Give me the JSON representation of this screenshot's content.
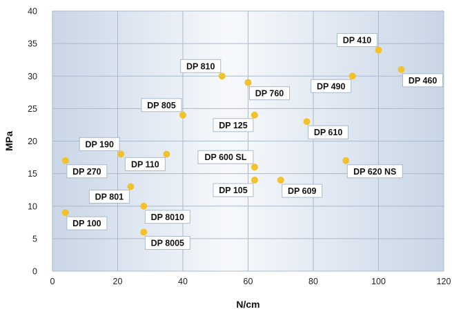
{
  "chart_data": {
    "type": "scatter",
    "title": "",
    "xlabel": "N/cm",
    "ylabel": "MPa",
    "xlim": [
      0,
      120
    ],
    "ylim": [
      0,
      40
    ],
    "x_ticks": [
      0,
      20,
      40,
      60,
      80,
      100,
      120
    ],
    "y_ticks": [
      0,
      5,
      10,
      15,
      20,
      25,
      30,
      35,
      40
    ],
    "grid": true,
    "legend": "none",
    "points": [
      {
        "label": "DP 410",
        "x": 100,
        "y": 34,
        "label_pos": "above-left"
      },
      {
        "label": "DP 460",
        "x": 107,
        "y": 31,
        "label_pos": "below-right"
      },
      {
        "label": "DP 810",
        "x": 52,
        "y": 30,
        "label_pos": "above-left"
      },
      {
        "label": "DP 490",
        "x": 92,
        "y": 30,
        "label_pos": "below-left"
      },
      {
        "label": "DP 760",
        "x": 60,
        "y": 29,
        "label_pos": "below-right"
      },
      {
        "label": "DP 805",
        "x": 40,
        "y": 24,
        "label_pos": "above-left"
      },
      {
        "label": "DP 125",
        "x": 62,
        "y": 24,
        "label_pos": "below-left"
      },
      {
        "label": "DP 610",
        "x": 78,
        "y": 23,
        "label_pos": "below-right"
      },
      {
        "label": "DP 190",
        "x": 21,
        "y": 18,
        "label_pos": "above-left"
      },
      {
        "label": "DP 110",
        "x": 35,
        "y": 18,
        "label_pos": "below-left"
      },
      {
        "label": "DP 270",
        "x": 4,
        "y": 17,
        "label_pos": "below-right"
      },
      {
        "label": "DP 620 NS",
        "x": 90,
        "y": 17,
        "label_pos": "below-right"
      },
      {
        "label": "DP 600 SL",
        "x": 62,
        "y": 16,
        "label_pos": "above-left"
      },
      {
        "label": "DP 105",
        "x": 62,
        "y": 14,
        "label_pos": "below-left"
      },
      {
        "label": "DP 609",
        "x": 70,
        "y": 14,
        "label_pos": "below-right"
      },
      {
        "label": "DP 801",
        "x": 24,
        "y": 13,
        "label_pos": "below-left"
      },
      {
        "label": "DP 8010",
        "x": 28,
        "y": 10,
        "label_pos": "below-right"
      },
      {
        "label": "DP 100",
        "x": 4,
        "y": 9,
        "label_pos": "below-right"
      },
      {
        "label": "DP 8005",
        "x": 28,
        "y": 6,
        "label_pos": "below-right"
      }
    ]
  },
  "colors": {
    "point": "#f2c12e",
    "plot_gradient_edge": "#c9d6e6",
    "plot_gradient_center": "#f7f9fc",
    "grid": "#a9b9cc",
    "label_box_border": "#a9b9cc"
  }
}
